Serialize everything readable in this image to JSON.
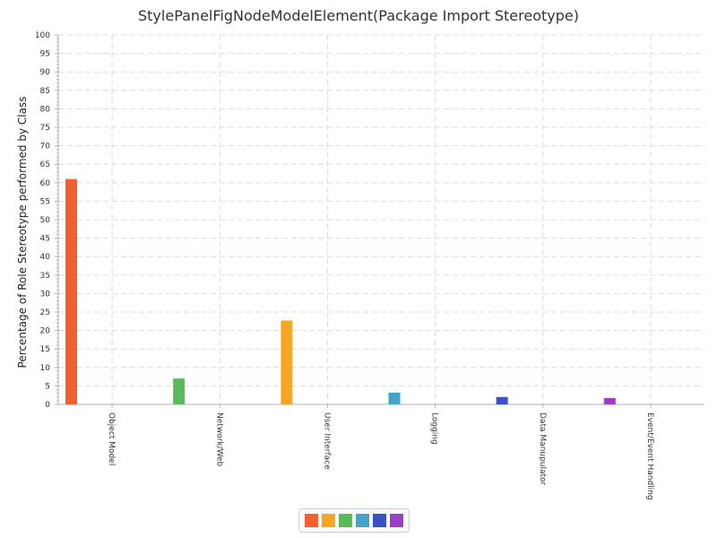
{
  "chart_data": {
    "type": "bar",
    "title": "StylePanelFigNodeModelElement(Package Import Stereotype)",
    "xlabel": "",
    "ylabel": "Percentage of Role Stereotype performed by Class",
    "ylim": [
      0,
      100
    ],
    "ytick_step": 5,
    "grid": true,
    "legend_position": "bottom-center",
    "categories": [
      "Object Model",
      "Network/Web",
      "User Interface",
      "Logging",
      "Data Manupulator",
      "Event/Event Handling"
    ],
    "values": [
      61,
      7,
      22.7,
      3.2,
      2,
      1.7
    ],
    "colors": [
      "#f06030",
      "#5cb85c",
      "#f5a623",
      "#42a5c8",
      "#3a52c4",
      "#9b3fc8"
    ],
    "legend_colors": [
      "#f06030",
      "#f5a623",
      "#5cb85c",
      "#42a5c8",
      "#3a52c4",
      "#9b3fc8"
    ]
  }
}
